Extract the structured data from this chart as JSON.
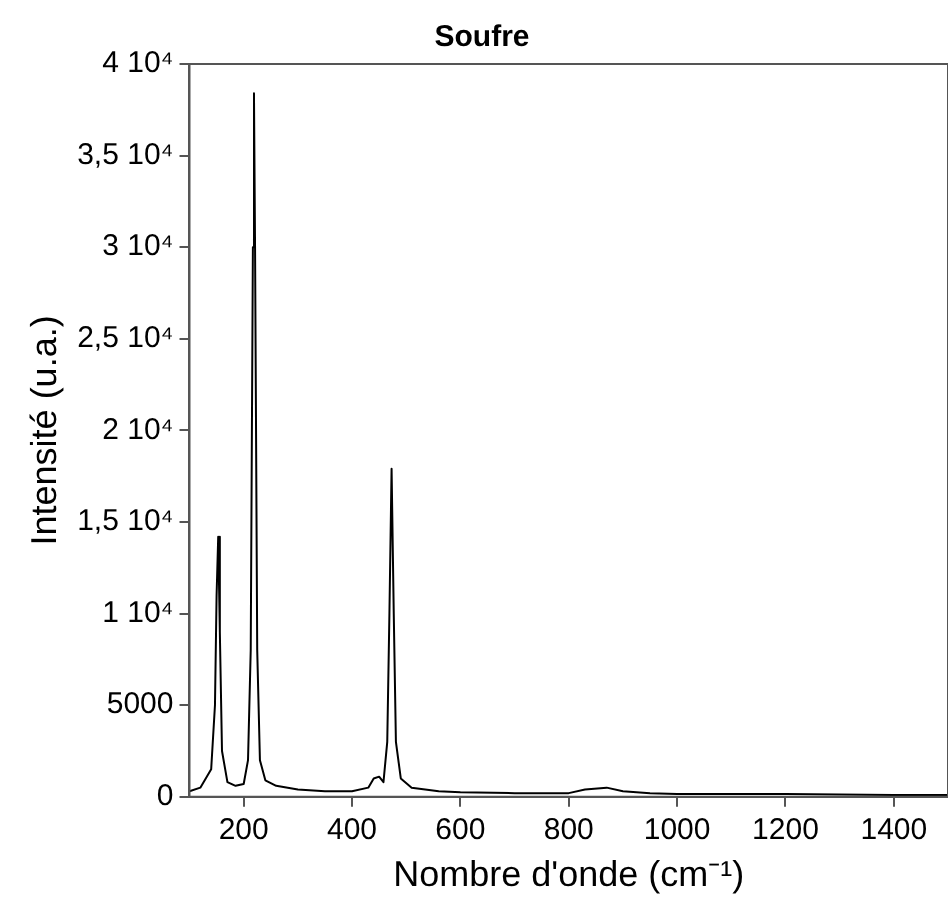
{
  "chart_data": {
    "type": "line",
    "title": "Soufre",
    "xlabel": "Nombre d'onde (cm⁻¹)",
    "ylabel": "Intensité (u.a.)",
    "x": [
      100,
      120,
      140,
      147,
      150,
      153,
      156,
      160,
      170,
      185,
      200,
      208,
      213,
      217,
      219,
      221,
      225,
      230,
      240,
      260,
      300,
      350,
      400,
      430,
      440,
      450,
      458,
      465,
      469,
      473,
      477,
      481,
      490,
      510,
      560,
      600,
      700,
      800,
      830,
      870,
      900,
      950,
      1000,
      1200,
      1400,
      1500
    ],
    "series": [
      {
        "color": "#000000",
        "values": [
          300,
          500,
          1500,
          5000,
          11000,
          14200,
          9000,
          2500,
          800,
          600,
          700,
          2000,
          8000,
          30000,
          38400,
          30000,
          8000,
          2000,
          900,
          600,
          400,
          300,
          300,
          500,
          1000,
          1100,
          800,
          3000,
          10000,
          17900,
          10000,
          3000,
          1000,
          500,
          300,
          250,
          200,
          200,
          400,
          500,
          300,
          200,
          150,
          150,
          100,
          100
        ]
      }
    ],
    "xlim": [
      100,
      1500
    ],
    "xticks": [
      200,
      400,
      600,
      800,
      1000,
      1200,
      1400
    ],
    "ylim": [
      0,
      40000
    ],
    "yticks": [
      0,
      5000,
      {
        "value": 10000,
        "label": "1 10⁴"
      },
      {
        "value": 15000,
        "label": "1,5 10⁴"
      },
      {
        "value": 20000,
        "label": "2 10⁴"
      },
      {
        "value": 25000,
        "label": "2,5 10⁴"
      },
      {
        "value": 30000,
        "label": "3 10⁴"
      },
      {
        "value": 35000,
        "label": "3,5 10⁴"
      },
      {
        "value": 40000,
        "label": "4 10⁴"
      }
    ],
    "grid": false,
    "legend": false
  }
}
